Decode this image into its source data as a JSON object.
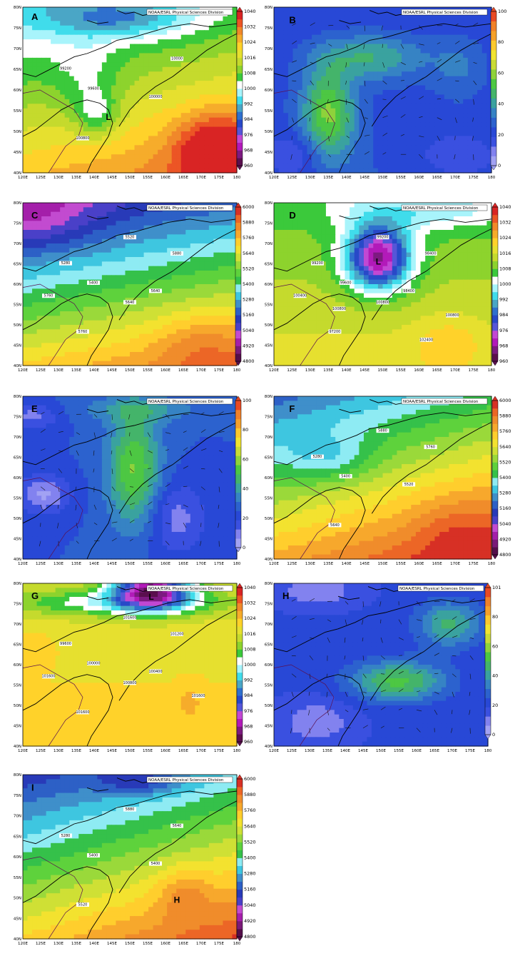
{
  "figure": {
    "credit": "NOAA/ESRL Physical Sciences Division",
    "lon_ticks": [
      "120E",
      "125E",
      "130E",
      "135E",
      "140E",
      "145E",
      "150E",
      "155E",
      "160E",
      "165E",
      "170E",
      "175E",
      "180"
    ],
    "lat_ticks": [
      "80N",
      "75N",
      "70N",
      "65N",
      "60N",
      "55N",
      "50N",
      "45N",
      "40N"
    ],
    "colorbars": {
      "slp": [
        "1040",
        "1032",
        "1024",
        "1016",
        "1008",
        "1000",
        "992",
        "984",
        "976",
        "968",
        "960"
      ],
      "rh": [
        "100",
        "80",
        "60",
        "40",
        "20",
        "0"
      ],
      "rh_h": [
        "101",
        "80",
        "60",
        "40",
        "20",
        "0"
      ],
      "hgt": [
        "6000",
        "5880",
        "5760",
        "5640",
        "5520",
        "5400",
        "5280",
        "5160",
        "5040",
        "4920",
        "4800"
      ]
    },
    "panels": [
      {
        "label": "A",
        "type": "slp",
        "contour_labels": [
          "99200",
          "99600",
          "100000",
          "100800",
          "10000"
        ],
        "markers": [
          "L"
        ]
      },
      {
        "label": "B",
        "type": "rh",
        "contour_labels": [],
        "markers": []
      },
      {
        "label": "C",
        "type": "hgt",
        "contour_labels": [
          "5280",
          "5400",
          "5640",
          "5760",
          "5880",
          "5520",
          "5640",
          "5760"
        ],
        "markers": []
      },
      {
        "label": "D",
        "type": "slp",
        "contour_labels": [
          "99200",
          "99600",
          "98400",
          "97200",
          "98400",
          "99200",
          "100800",
          "100400",
          "100800",
          "100800",
          "102400"
        ],
        "markers": [
          "L"
        ]
      },
      {
        "label": "E",
        "type": "rh",
        "contour_labels": [],
        "markers": []
      },
      {
        "label": "F",
        "type": "hgt",
        "contour_labels": [
          "5280",
          "5400",
          "5520",
          "5640",
          "5760",
          "5880"
        ],
        "markers": []
      },
      {
        "label": "G",
        "type": "slp",
        "contour_labels": [
          "99600",
          "100000",
          "100400",
          "101600",
          "101200",
          "101600",
          "100800",
          "101600",
          "101600"
        ],
        "markers": [
          "L"
        ]
      },
      {
        "label": "H",
        "type": "rh_h",
        "contour_labels": [],
        "markers": []
      },
      {
        "label": "I",
        "type": "hgt",
        "contour_labels": [
          "5280",
          "5400",
          "5400",
          "5520",
          "5640",
          "5880"
        ],
        "markers": [
          "H"
        ]
      }
    ]
  }
}
